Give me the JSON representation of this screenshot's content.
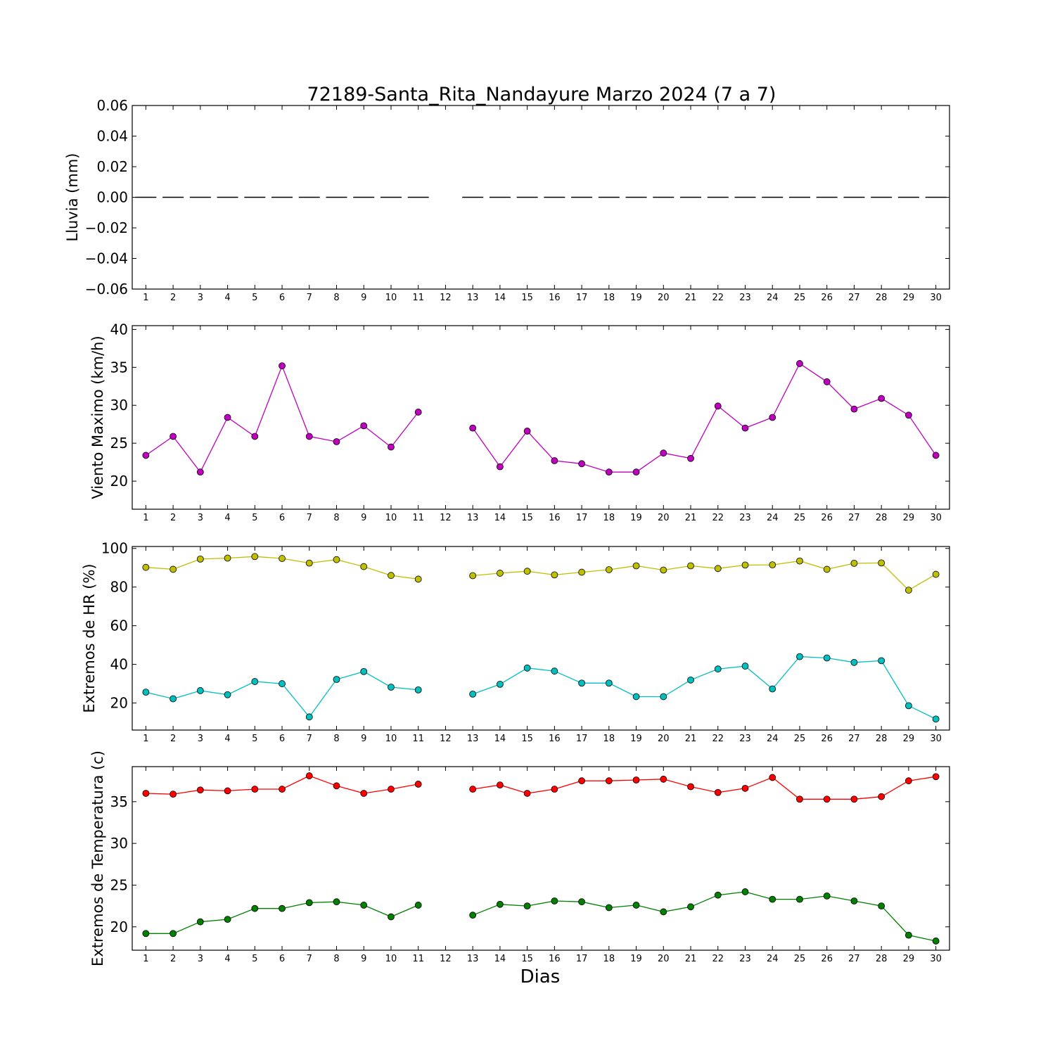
{
  "chart_data": {
    "type": "line",
    "title": "72189-Santa_Rita_Nandayure Marzo 2024  (7 a 7)",
    "xlabel": "Dias",
    "x": [
      1,
      2,
      3,
      4,
      5,
      6,
      7,
      8,
      9,
      10,
      11,
      12,
      13,
      14,
      15,
      16,
      17,
      18,
      19,
      20,
      21,
      22,
      23,
      24,
      25,
      26,
      27,
      28,
      29,
      30
    ],
    "xlim": [
      0.5,
      30.5
    ],
    "panels": [
      {
        "id": "lluvia",
        "ylabel": "Lluvia (mm)",
        "ylim": [
          -0.06,
          0.06
        ],
        "yticks": [
          0.06,
          0.04,
          0.02,
          0.0,
          -0.02,
          -0.04,
          -0.06
        ],
        "ytick_labels": [
          "0.06",
          "0.04",
          "0.02",
          "0.00",
          "−0.02",
          "−0.04",
          "−0.06"
        ],
        "series": [
          {
            "color": "#000000",
            "style": "dashes",
            "values": [
              0,
              0,
              0,
              0,
              0,
              0,
              0,
              0,
              0,
              0,
              0,
              null,
              0,
              0,
              0,
              0,
              0,
              0,
              0,
              0,
              0,
              0,
              0,
              0,
              0,
              0,
              0,
              0,
              0,
              0
            ]
          }
        ]
      },
      {
        "id": "viento",
        "ylabel": "Viento Maximo (km/h)",
        "ylim": [
          16.3,
          40.5
        ],
        "yticks": [
          40,
          35,
          30,
          25,
          20
        ],
        "ytick_labels": [
          "40",
          "35",
          "30",
          "25",
          "20"
        ],
        "series": [
          {
            "color": "#bf00bf",
            "style": "line-marker",
            "values": [
              23.4,
              25.9,
              21.2,
              28.4,
              25.9,
              35.2,
              25.9,
              25.2,
              27.3,
              24.5,
              29.1,
              null,
              27.0,
              21.9,
              26.6,
              22.7,
              22.3,
              21.2,
              21.2,
              23.7,
              23.0,
              29.9,
              27.0,
              28.4,
              35.5,
              33.1,
              29.5,
              30.9,
              28.7,
              23.4
            ]
          }
        ]
      },
      {
        "id": "hr",
        "ylabel": "Extremos de HR (%)",
        "ylim": [
          6,
          101
        ],
        "yticks": [
          100,
          80,
          60,
          40,
          20
        ],
        "ytick_labels": [
          "100",
          "80",
          "60",
          "40",
          "20"
        ],
        "series": [
          {
            "color": "#bfbf00",
            "style": "line-marker",
            "values": [
              90.2,
              89.2,
              94.5,
              95.0,
              95.8,
              94.8,
              92.4,
              94.2,
              90.6,
              86.0,
              84.1,
              null,
              85.9,
              87.2,
              88.2,
              86.3,
              87.7,
              89.0,
              91.0,
              88.8,
              91.0,
              89.6,
              91.4,
              91.5,
              93.5,
              89.2,
              92.3,
              92.5,
              78.4,
              86.6
            ]
          },
          {
            "color": "#00bfbf",
            "style": "line-marker",
            "values": [
              25.6,
              22.2,
              26.4,
              24.3,
              31.1,
              30.0,
              12.8,
              32.2,
              36.3,
              28.2,
              26.8,
              null,
              24.6,
              29.7,
              38.1,
              36.5,
              30.3,
              30.3,
              23.3,
              23.3,
              31.9,
              37.6,
              39.1,
              27.3,
              44.0,
              43.3,
              41.0,
              41.9,
              18.6,
              11.7
            ]
          }
        ]
      },
      {
        "id": "temp",
        "ylabel": "Extremos de Temperatura (c)",
        "ylim": [
          17.2,
          39.2
        ],
        "yticks": [
          35,
          30,
          25,
          20
        ],
        "ytick_labels": [
          "35",
          "30",
          "25",
          "20"
        ],
        "series": [
          {
            "color": "#ff0000",
            "style": "line-marker",
            "values": [
              36.0,
              35.9,
              36.4,
              36.3,
              36.5,
              36.5,
              38.1,
              36.9,
              36.0,
              36.5,
              37.1,
              null,
              36.5,
              37.0,
              36.0,
              36.5,
              37.5,
              37.5,
              37.6,
              37.7,
              36.8,
              36.1,
              36.6,
              37.9,
              35.3,
              35.3,
              35.3,
              35.6,
              37.5,
              38.0
            ]
          },
          {
            "color": "#007f00",
            "style": "line-marker",
            "values": [
              19.2,
              19.2,
              20.6,
              20.9,
              22.2,
              22.2,
              22.9,
              23.0,
              22.6,
              21.2,
              22.6,
              null,
              21.4,
              22.7,
              22.5,
              23.1,
              23.0,
              22.3,
              22.6,
              21.8,
              22.4,
              23.8,
              24.2,
              23.3,
              23.3,
              23.7,
              23.1,
              22.5,
              19.0,
              18.3
            ]
          }
        ]
      }
    ]
  }
}
